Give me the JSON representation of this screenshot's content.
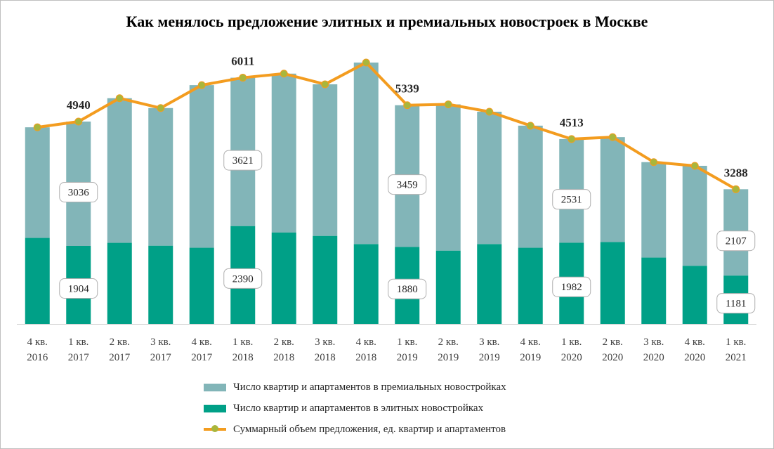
{
  "chart_data": {
    "type": "bar",
    "title": "Как менялось предложение элитных и премиальных новостроек  в Москве",
    "categories": [
      [
        "4 кв.",
        "2016"
      ],
      [
        "1 кв.",
        "2017"
      ],
      [
        "2 кв.",
        "2017"
      ],
      [
        "3 кв.",
        "2017"
      ],
      [
        "4 кв.",
        "2017"
      ],
      [
        "1 кв.",
        "2018"
      ],
      [
        "2 кв.",
        "2018"
      ],
      [
        "3 кв.",
        "2018"
      ],
      [
        "4 кв.",
        "2018"
      ],
      [
        "1 кв.",
        "2019"
      ],
      [
        "2 кв.",
        "2019"
      ],
      [
        "3 кв.",
        "2019"
      ],
      [
        "4 кв.",
        "2019"
      ],
      [
        "1 кв.",
        "2020"
      ],
      [
        "2 кв.",
        "2020"
      ],
      [
        "3 кв.",
        "2020"
      ],
      [
        "4 кв.",
        "2020"
      ],
      [
        "1 кв.",
        "2021"
      ]
    ],
    "stacked": true,
    "ylim": [
      0,
      6500
    ],
    "grid": false,
    "legend_position": "bottom",
    "series": [
      {
        "name": "Число квартир и апартаментов в элитных новостройках",
        "kind": "bar",
        "color": "#00a087",
        "values": [
          2100,
          1904,
          1980,
          1910,
          1860,
          2390,
          2230,
          2150,
          1950,
          1880,
          1790,
          1950,
          1860,
          1982,
          2000,
          1620,
          1420,
          1181
        ],
        "labeled_indices": [
          1,
          5,
          9,
          13,
          17
        ]
      },
      {
        "name": "Число квартир и апартаментов в премиальных новостройках",
        "kind": "bar",
        "color": "#82b5b8",
        "values": [
          2700,
          3036,
          3530,
          3360,
          3970,
          3621,
          3880,
          3700,
          4430,
          3459,
          3570,
          3230,
          2980,
          2531,
          2560,
          2330,
          2440,
          2107
        ],
        "labeled_indices": [
          1,
          5,
          9,
          13,
          17
        ]
      },
      {
        "name": "Суммарный объем предложения, ед. квартир и апартаментов",
        "kind": "line",
        "color": "#f39c1f",
        "marker_color": "#a9b63c",
        "values": [
          4800,
          4940,
          5510,
          5270,
          5830,
          6011,
          6110,
          5850,
          6380,
          5339,
          5360,
          5180,
          4840,
          4513,
          4560,
          3950,
          3860,
          3288
        ],
        "labeled_indices": [
          1,
          5,
          9,
          13,
          17
        ]
      }
    ]
  }
}
